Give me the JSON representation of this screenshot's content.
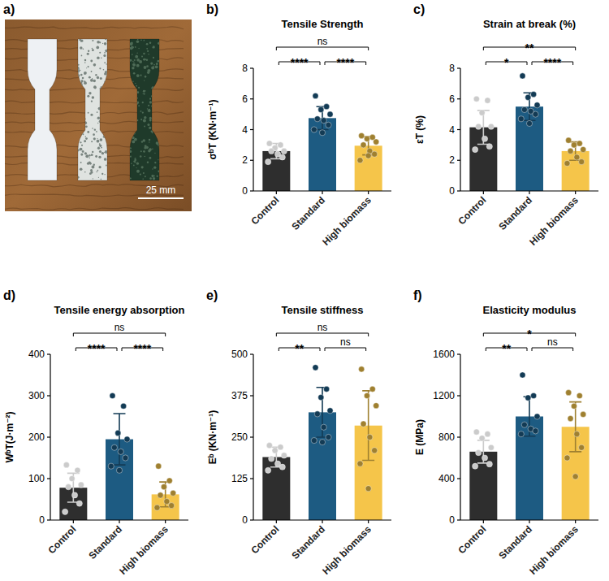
{
  "photo": {
    "panel_label": "a)",
    "scale_bar": "25 mm"
  },
  "chart_data": [
    {
      "type": "bar",
      "panel_label": "b)",
      "title": "Tensile Strength",
      "y_label": "σᵇT (KN·m⁻¹)",
      "categories": [
        "Control",
        "Standard",
        "High biomass"
      ],
      "values": [
        2.6,
        4.75,
        2.95
      ],
      "errors": [
        0.5,
        0.75,
        0.6
      ],
      "points": [
        [
          3.1,
          3.0,
          2.8,
          2.6,
          2.6,
          2.4,
          2.2,
          1.9
        ],
        [
          6.2,
          5.5,
          5.3,
          5.0,
          4.7,
          4.6,
          4.3,
          4.0,
          3.8
        ],
        [
          3.6,
          3.5,
          3.4,
          3.2,
          3.0,
          2.6,
          2.4,
          2.0,
          2.3
        ]
      ],
      "colors": [
        "#2e2e2e",
        "#1d5b82",
        "#f5c54a"
      ],
      "ylim": [
        0,
        8
      ],
      "yticks": [
        0,
        2,
        4,
        6,
        8
      ],
      "comparisons": [
        {
          "groups": [
            "Control",
            "Standard"
          ],
          "label": "****"
        },
        {
          "groups": [
            "Standard",
            "High biomass"
          ],
          "label": "****"
        },
        {
          "groups": [
            "Control",
            "High biomass"
          ],
          "label": "ns"
        }
      ]
    },
    {
      "type": "bar",
      "panel_label": "c)",
      "title": "Strain at break (%)",
      "y_label": "εT (%)",
      "categories": [
        "Control",
        "Standard",
        "High biomass"
      ],
      "values": [
        4.15,
        5.5,
        2.6
      ],
      "errors": [
        1.1,
        0.9,
        0.6
      ],
      "points": [
        [
          6.0,
          5.9,
          5.1,
          4.2,
          4.2,
          3.4,
          2.9,
          2.7
        ],
        [
          7.5,
          6.3,
          6.1,
          5.6,
          5.3,
          5.2,
          5.0,
          4.7,
          4.4
        ],
        [
          3.3,
          3.1,
          3.0,
          2.7,
          2.6,
          2.2,
          1.9,
          1.8
        ]
      ],
      "colors": [
        "#2e2e2e",
        "#1d5b82",
        "#f5c54a"
      ],
      "ylim": [
        0,
        8
      ],
      "yticks": [
        0,
        2,
        4,
        6,
        8
      ],
      "comparisons": [
        {
          "groups": [
            "Control",
            "Standard"
          ],
          "label": "*"
        },
        {
          "groups": [
            "Standard",
            "High biomass"
          ],
          "label": "****"
        },
        {
          "groups": [
            "Control",
            "High biomass"
          ],
          "label": "**"
        }
      ]
    },
    {
      "type": "bar",
      "panel_label": "d)",
      "title": "Tensile energy absorption",
      "y_label": "WᵇT(J·m⁻²)",
      "categories": [
        "Control",
        "Standard",
        "High biomass"
      ],
      "values": [
        78,
        195,
        62
      ],
      "errors": [
        35,
        62,
        30
      ],
      "points": [
        [
          133,
          120,
          100,
          85,
          80,
          60,
          40,
          20
        ],
        [
          300,
          275,
          210,
          195,
          175,
          165,
          150,
          130,
          120
        ],
        [
          130,
          95,
          80,
          65,
          60,
          45,
          35,
          30
        ]
      ],
      "colors": [
        "#2e2e2e",
        "#1d5b82",
        "#f5c54a"
      ],
      "ylim": [
        0,
        400
      ],
      "yticks": [
        0,
        100,
        200,
        300,
        400
      ],
      "comparisons": [
        {
          "groups": [
            "Control",
            "Standard"
          ],
          "label": "****"
        },
        {
          "groups": [
            "Standard",
            "High biomass"
          ],
          "label": "****"
        },
        {
          "groups": [
            "Control",
            "High biomass"
          ],
          "label": "ns"
        }
      ]
    },
    {
      "type": "bar",
      "panel_label": "e)",
      "title": "Tensile stiffness",
      "y_label": "Eᵇ (KN·m⁻¹)",
      "categories": [
        "Control",
        "Standard",
        "High biomass"
      ],
      "values": [
        190,
        325,
        285
      ],
      "errors": [
        30,
        75,
        105
      ],
      "points": [
        [
          225,
          220,
          210,
          195,
          185,
          170,
          160,
          150
        ],
        [
          460,
          395,
          370,
          330,
          320,
          280,
          250,
          240,
          235
        ],
        [
          455,
          395,
          375,
          345,
          290,
          250,
          210,
          170,
          95
        ]
      ],
      "colors": [
        "#2e2e2e",
        "#1d5b82",
        "#f5c54a"
      ],
      "ylim": [
        0,
        500
      ],
      "yticks": [
        0,
        125,
        250,
        375,
        500
      ],
      "comparisons": [
        {
          "groups": [
            "Control",
            "Standard"
          ],
          "label": "**"
        },
        {
          "groups": [
            "Standard",
            "High biomass"
          ],
          "label": "ns"
        },
        {
          "groups": [
            "Control",
            "High biomass"
          ],
          "label": "ns"
        }
      ]
    },
    {
      "type": "bar",
      "panel_label": "f)",
      "title": "Elasticity modulus",
      "y_label": "E (MPa)",
      "categories": [
        "Control",
        "Standard",
        "High biomass"
      ],
      "values": [
        660,
        1000,
        900
      ],
      "errors": [
        110,
        190,
        240
      ],
      "points": [
        [
          850,
          830,
          790,
          700,
          650,
          600,
          540,
          520
        ],
        [
          1400,
          1200,
          1180,
          1000,
          920,
          880,
          860,
          830
        ],
        [
          1230,
          1200,
          1100,
          1020,
          980,
          830,
          700,
          600,
          420
        ]
      ],
      "colors": [
        "#2e2e2e",
        "#1d5b82",
        "#f5c54a"
      ],
      "ylim": [
        0,
        1600
      ],
      "yticks": [
        0,
        400,
        800,
        1200,
        1600
      ],
      "comparisons": [
        {
          "groups": [
            "Control",
            "Standard"
          ],
          "label": "**"
        },
        {
          "groups": [
            "Standard",
            "High biomass"
          ],
          "label": "ns"
        },
        {
          "groups": [
            "Control",
            "High biomass"
          ],
          "label": "*"
        }
      ]
    }
  ]
}
